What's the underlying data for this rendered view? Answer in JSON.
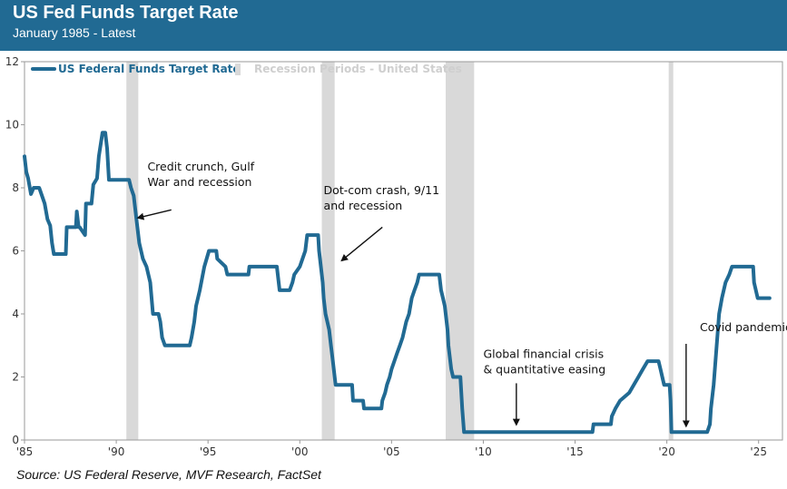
{
  "header": {
    "title": "US Fed Funds Target Rate",
    "subtitle": "January 1985 - Latest"
  },
  "source": "Source: US Federal Reserve, MVF Research, FactSet",
  "chart_data": {
    "type": "line",
    "title": "US Fed Funds Target Rate",
    "subtitle": "January 1985 - Latest",
    "xlabel": "",
    "ylabel": "",
    "xlim": [
      1985,
      2026.3
    ],
    "ylim": [
      0,
      12
    ],
    "x_ticks": [
      1985,
      1990,
      1995,
      2000,
      2005,
      2010,
      2015,
      2020,
      2025
    ],
    "x_tick_labels": [
      "'85",
      "'90",
      "'95",
      "'00",
      "'05",
      "'10",
      "'15",
      "'20",
      "'25"
    ],
    "y_ticks": [
      0,
      2,
      4,
      6,
      8,
      10,
      12
    ],
    "y_tick_labels": [
      "0",
      "2",
      "4",
      "6",
      "8",
      "10",
      "12"
    ],
    "grid": false,
    "legend": {
      "placement": "top-left",
      "entries": [
        {
          "label": "US Federal Funds Target Rate",
          "color": "#216a93"
        },
        {
          "label": "Recession Periods - United States",
          "color": "#d9d9d9"
        }
      ]
    },
    "series": [
      {
        "name": "US Federal Funds Target Rate",
        "color": "#216a93",
        "points": [
          [
            1985.0,
            9.0
          ],
          [
            1985.1,
            8.5
          ],
          [
            1985.2,
            8.3
          ],
          [
            1985.35,
            7.8
          ],
          [
            1985.5,
            8.0
          ],
          [
            1985.8,
            8.0
          ],
          [
            1985.95,
            7.75
          ],
          [
            1986.1,
            7.5
          ],
          [
            1986.25,
            7.0
          ],
          [
            1986.4,
            6.8
          ],
          [
            1986.5,
            6.25
          ],
          [
            1986.6,
            5.9
          ],
          [
            1987.25,
            5.9
          ],
          [
            1987.3,
            6.75
          ],
          [
            1987.8,
            6.75
          ],
          [
            1987.85,
            7.25
          ],
          [
            1987.95,
            6.75
          ],
          [
            1988.0,
            6.75
          ],
          [
            1988.3,
            6.5
          ],
          [
            1988.35,
            7.5
          ],
          [
            1988.65,
            7.5
          ],
          [
            1988.75,
            8.1
          ],
          [
            1988.95,
            8.3
          ],
          [
            1989.05,
            9.0
          ],
          [
            1989.25,
            9.75
          ],
          [
            1989.4,
            9.75
          ],
          [
            1989.5,
            9.25
          ],
          [
            1989.6,
            8.25
          ],
          [
            1990.7,
            8.25
          ],
          [
            1990.8,
            8.0
          ],
          [
            1990.95,
            7.75
          ],
          [
            1991.1,
            7.0
          ],
          [
            1991.25,
            6.25
          ],
          [
            1991.45,
            5.75
          ],
          [
            1991.65,
            5.5
          ],
          [
            1991.85,
            5.0
          ],
          [
            1992.0,
            4.0
          ],
          [
            1992.3,
            4.0
          ],
          [
            1992.4,
            3.75
          ],
          [
            1992.5,
            3.25
          ],
          [
            1992.65,
            3.0
          ],
          [
            1994.0,
            3.0
          ],
          [
            1994.1,
            3.25
          ],
          [
            1994.25,
            3.75
          ],
          [
            1994.35,
            4.25
          ],
          [
            1994.55,
            4.75
          ],
          [
            1994.8,
            5.5
          ],
          [
            1995.05,
            6.0
          ],
          [
            1995.45,
            6.0
          ],
          [
            1995.5,
            5.75
          ],
          [
            1995.95,
            5.5
          ],
          [
            1996.05,
            5.25
          ],
          [
            1997.2,
            5.25
          ],
          [
            1997.25,
            5.5
          ],
          [
            1998.75,
            5.5
          ],
          [
            1998.8,
            5.25
          ],
          [
            1998.85,
            5.0
          ],
          [
            1998.9,
            4.75
          ],
          [
            1999.45,
            4.75
          ],
          [
            1999.6,
            5.0
          ],
          [
            1999.7,
            5.25
          ],
          [
            2000.0,
            5.5
          ],
          [
            2000.15,
            5.75
          ],
          [
            2000.3,
            6.0
          ],
          [
            2000.4,
            6.5
          ],
          [
            2001.0,
            6.5
          ],
          [
            2001.05,
            6.0
          ],
          [
            2001.15,
            5.5
          ],
          [
            2001.25,
            5.0
          ],
          [
            2001.3,
            4.5
          ],
          [
            2001.4,
            4.0
          ],
          [
            2001.5,
            3.75
          ],
          [
            2001.6,
            3.5
          ],
          [
            2001.7,
            3.0
          ],
          [
            2001.8,
            2.5
          ],
          [
            2001.9,
            2.0
          ],
          [
            2001.95,
            1.75
          ],
          [
            2002.85,
            1.75
          ],
          [
            2002.9,
            1.25
          ],
          [
            2003.45,
            1.25
          ],
          [
            2003.5,
            1.0
          ],
          [
            2004.45,
            1.0
          ],
          [
            2004.5,
            1.25
          ],
          [
            2004.65,
            1.5
          ],
          [
            2004.75,
            1.75
          ],
          [
            2004.9,
            2.0
          ],
          [
            2005.0,
            2.25
          ],
          [
            2005.15,
            2.5
          ],
          [
            2005.3,
            2.75
          ],
          [
            2005.45,
            3.0
          ],
          [
            2005.6,
            3.25
          ],
          [
            2005.7,
            3.5
          ],
          [
            2005.8,
            3.75
          ],
          [
            2005.95,
            4.0
          ],
          [
            2006.1,
            4.5
          ],
          [
            2006.25,
            4.75
          ],
          [
            2006.4,
            5.0
          ],
          [
            2006.5,
            5.25
          ],
          [
            2007.6,
            5.25
          ],
          [
            2007.7,
            4.75
          ],
          [
            2007.8,
            4.5
          ],
          [
            2007.9,
            4.25
          ],
          [
            2008.05,
            3.5
          ],
          [
            2008.1,
            3.0
          ],
          [
            2008.25,
            2.25
          ],
          [
            2008.35,
            2.0
          ],
          [
            2008.75,
            2.0
          ],
          [
            2008.8,
            1.5
          ],
          [
            2008.85,
            1.0
          ],
          [
            2008.95,
            0.25
          ],
          [
            2015.95,
            0.25
          ],
          [
            2016.0,
            0.5
          ],
          [
            2016.95,
            0.5
          ],
          [
            2017.0,
            0.75
          ],
          [
            2017.2,
            1.0
          ],
          [
            2017.45,
            1.25
          ],
          [
            2017.95,
            1.5
          ],
          [
            2018.2,
            1.75
          ],
          [
            2018.45,
            2.0
          ],
          [
            2018.7,
            2.25
          ],
          [
            2018.95,
            2.5
          ],
          [
            2019.55,
            2.5
          ],
          [
            2019.65,
            2.25
          ],
          [
            2019.75,
            2.0
          ],
          [
            2019.85,
            1.75
          ],
          [
            2020.15,
            1.75
          ],
          [
            2020.2,
            1.25
          ],
          [
            2020.25,
            0.25
          ],
          [
            2022.2,
            0.25
          ],
          [
            2022.35,
            0.5
          ],
          [
            2022.4,
            1.0
          ],
          [
            2022.55,
            1.75
          ],
          [
            2022.65,
            2.5
          ],
          [
            2022.75,
            3.25
          ],
          [
            2022.85,
            4.0
          ],
          [
            2023.0,
            4.5
          ],
          [
            2023.1,
            4.75
          ],
          [
            2023.2,
            5.0
          ],
          [
            2023.4,
            5.25
          ],
          [
            2023.55,
            5.5
          ],
          [
            2024.7,
            5.5
          ],
          [
            2024.75,
            5.0
          ],
          [
            2024.85,
            4.75
          ],
          [
            2024.95,
            4.5
          ],
          [
            2025.6,
            4.5
          ]
        ]
      }
    ],
    "recessions": [
      [
        1990.55,
        1991.2
      ],
      [
        2001.2,
        2001.9
      ],
      [
        2007.95,
        2009.5
      ],
      [
        2020.1,
        2020.35
      ]
    ],
    "annotations": [
      {
        "lines": [
          "Credit crunch, Gulf",
          "War and recession"
        ],
        "text_at": [
          1991.7,
          8.55
        ],
        "arrow_from": [
          1993.0,
          7.3
        ],
        "arrow_to": [
          1991.2,
          7.05
        ]
      },
      {
        "lines": [
          "Dot-com crash, 9/11",
          "and recession"
        ],
        "text_at": [
          2001.3,
          7.8
        ],
        "arrow_from": [
          2004.5,
          6.75
        ],
        "arrow_to": [
          2002.3,
          5.7
        ]
      },
      {
        "lines": [
          "Global financial crisis",
          "& quantitative easing"
        ],
        "text_at": [
          2010.0,
          2.6
        ],
        "arrow_from": [
          2011.8,
          1.8
        ],
        "arrow_to": [
          2011.8,
          0.5
        ]
      },
      {
        "lines": [
          "Covid pandemic"
        ],
        "text_at": [
          2021.8,
          3.45
        ],
        "arrow_from": [
          2021.05,
          3.05
        ],
        "arrow_to": [
          2021.05,
          0.45
        ]
      }
    ]
  }
}
